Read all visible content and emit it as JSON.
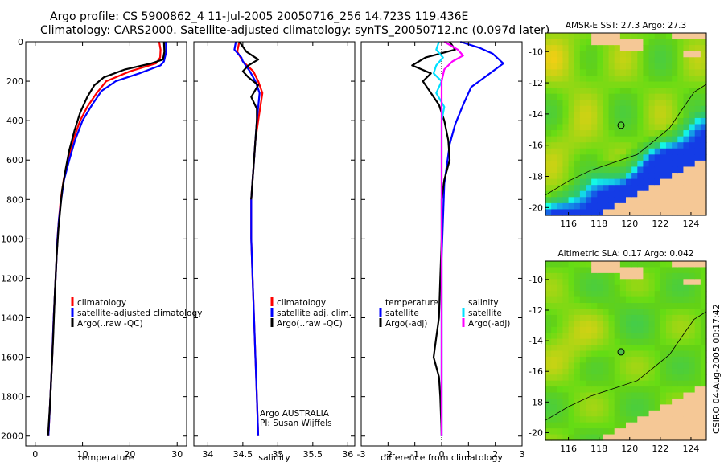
{
  "header": {
    "line1": "Argo profile: CS 5900862_4 11-Jul-2005 20050716_256 14.723S 119.436E",
    "line2": "Climatology: CARS2000. Satellite-adjusted climatology: synTS_20050712.nc (0.097d later)"
  },
  "side_stamp": "CSIRO 04-Aug-2005 00:17:42",
  "colors": {
    "climatology": "#ff0000",
    "satellite": "#0000ff",
    "argo": "#000000",
    "salinity_sat": "#00e0ff",
    "salinity_argo": "#ff00ff",
    "land": "#f5c896",
    "coast": "#000000"
  },
  "chart_data": [
    {
      "type": "line",
      "id": "temperature",
      "xlabel": "temperature",
      "ylabel": "",
      "xlim": [
        -2,
        32
      ],
      "ylim": [
        2050,
        0
      ],
      "xticks": [
        0,
        10,
        20,
        30
      ],
      "yticks": [
        0,
        200,
        400,
        600,
        800,
        1000,
        1200,
        1400,
        1600,
        1800,
        2000
      ],
      "legend": {
        "position": "bottom-right",
        "entries": [
          "climatology",
          "satellite-adjusted climatology",
          "Argo(..raw -QC)"
        ]
      },
      "series": [
        {
          "name": "climatology",
          "color": "#ff0000",
          "points": [
            [
              26.2,
              0
            ],
            [
              26.5,
              40
            ],
            [
              26.4,
              80
            ],
            [
              25.5,
              110
            ],
            [
              20,
              150
            ],
            [
              15,
              200
            ],
            [
              13,
              260
            ],
            [
              11,
              330
            ],
            [
              9.5,
              400
            ],
            [
              8,
              500
            ],
            [
              7,
              600
            ],
            [
              6,
              700
            ],
            [
              5.4,
              800
            ],
            [
              5,
              900
            ],
            [
              4.7,
              1000
            ],
            [
              4.3,
              1200
            ],
            [
              3.9,
              1400
            ],
            [
              3.6,
              1600
            ],
            [
              3.2,
              1800
            ],
            [
              2.8,
              2000
            ]
          ]
        },
        {
          "name": "satellite-adjusted climatology",
          "color": "#0000ff",
          "points": [
            [
              27.6,
              0
            ],
            [
              27.7,
              50
            ],
            [
              27.2,
              100
            ],
            [
              26.5,
              120
            ],
            [
              22,
              160
            ],
            [
              17,
              200
            ],
            [
              14,
              250
            ],
            [
              12,
              320
            ],
            [
              10,
              400
            ],
            [
              8.4,
              500
            ],
            [
              7.2,
              600
            ],
            [
              6.1,
              700
            ],
            [
              5.5,
              800
            ],
            [
              5,
              900
            ],
            [
              4.7,
              1000
            ],
            [
              4.3,
              1200
            ],
            [
              3.9,
              1400
            ],
            [
              3.6,
              1600
            ],
            [
              3.2,
              1800
            ],
            [
              2.8,
              2000
            ]
          ]
        },
        {
          "name": "Argo(..raw -QC)",
          "color": "#000000",
          "points": [
            [
              27.2,
              0
            ],
            [
              27.3,
              50
            ],
            [
              27,
              90
            ],
            [
              24.5,
              110
            ],
            [
              19,
              140
            ],
            [
              14.5,
              180
            ],
            [
              12.5,
              220
            ],
            [
              11,
              280
            ],
            [
              9.5,
              360
            ],
            [
              8.3,
              450
            ],
            [
              7.2,
              550
            ],
            [
              6.4,
              650
            ],
            [
              5.7,
              750
            ],
            [
              5.3,
              850
            ],
            [
              4.9,
              950
            ],
            [
              4.5,
              1100
            ],
            [
              4.1,
              1300
            ],
            [
              3.8,
              1500
            ],
            [
              3.4,
              1700
            ],
            [
              3.1,
              1850
            ],
            [
              2.7,
              2000
            ]
          ]
        }
      ]
    },
    {
      "type": "line",
      "id": "salinity",
      "xlabel": "salinity",
      "xlim": [
        33.8,
        36.1
      ],
      "ylim": [
        2050,
        0
      ],
      "xticks": [
        34,
        34.5,
        35,
        35.5,
        36
      ],
      "xticklabels": [
        "34",
        "34.5",
        "35",
        "35.5",
        "36"
      ],
      "legend": {
        "position": "bottom-right",
        "entries": [
          "climatology",
          "satellite adj. clim.",
          "Argo(..raw -QC)"
        ]
      },
      "annotations": [
        "Argo AUSTRALIA",
        "PI: Susan Wijffels"
      ],
      "series": [
        {
          "name": "climatology",
          "color": "#ff0000",
          "points": [
            [
              34.45,
              0
            ],
            [
              34.42,
              50
            ],
            [
              34.5,
              100
            ],
            [
              34.65,
              150
            ],
            [
              34.72,
              200
            ],
            [
              34.78,
              260
            ],
            [
              34.75,
              330
            ],
            [
              34.72,
              400
            ],
            [
              34.68,
              500
            ],
            [
              34.66,
              600
            ],
            [
              34.64,
              700
            ],
            [
              34.62,
              800
            ],
            [
              34.62,
              1000
            ],
            [
              34.64,
              1200
            ],
            [
              34.66,
              1400
            ],
            [
              34.68,
              1600
            ],
            [
              34.7,
              1800
            ],
            [
              34.72,
              2000
            ]
          ]
        },
        {
          "name": "satellite adj. clim.",
          "color": "#0000ff",
          "points": [
            [
              34.4,
              0
            ],
            [
              34.38,
              40
            ],
            [
              34.48,
              80
            ],
            [
              34.5,
              100
            ],
            [
              34.6,
              150
            ],
            [
              34.68,
              200
            ],
            [
              34.74,
              260
            ],
            [
              34.72,
              330
            ],
            [
              34.7,
              400
            ],
            [
              34.68,
              500
            ],
            [
              34.66,
              600
            ],
            [
              34.64,
              700
            ],
            [
              34.62,
              800
            ],
            [
              34.62,
              1000
            ],
            [
              34.64,
              1200
            ],
            [
              34.66,
              1400
            ],
            [
              34.68,
              1600
            ],
            [
              34.7,
              1800
            ],
            [
              34.72,
              2000
            ]
          ]
        },
        {
          "name": "Argo(..raw -QC)",
          "color": "#000000",
          "points": [
            [
              34.45,
              0
            ],
            [
              34.55,
              50
            ],
            [
              34.72,
              90
            ],
            [
              34.58,
              120
            ],
            [
              34.5,
              150
            ],
            [
              34.58,
              180
            ],
            [
              34.72,
              220
            ],
            [
              34.62,
              280
            ],
            [
              34.7,
              340
            ],
            [
              34.7,
              400
            ],
            [
              34.68,
              500
            ],
            [
              34.66,
              600
            ],
            [
              34.64,
              700
            ],
            [
              34.62,
              800
            ]
          ]
        }
      ]
    },
    {
      "type": "line",
      "id": "difference",
      "xlabel": "difference from climatology",
      "xlim": [
        -3,
        3
      ],
      "ylim": [
        2050,
        0
      ],
      "xticks": [
        -3,
        -2,
        -1,
        0,
        1,
        2,
        3
      ],
      "legend": {
        "position": "bottom",
        "entries": [
          "temperature",
          "satellite",
          "Argo(-adj)",
          "salinity",
          "satellite",
          "Argo(-adj)"
        ]
      },
      "series": [
        {
          "name": "temperature satellite",
          "color": "#0000ff",
          "points": [
            [
              0.7,
              0
            ],
            [
              1.4,
              30
            ],
            [
              1.9,
              60
            ],
            [
              2.3,
              110
            ],
            [
              1.6,
              180
            ],
            [
              1.1,
              230
            ],
            [
              0.8,
              320
            ],
            [
              0.5,
              420
            ],
            [
              0.3,
              520
            ],
            [
              0.2,
              620
            ],
            [
              0.1,
              720
            ],
            [
              0.05,
              900
            ],
            [
              0,
              1100
            ],
            [
              0,
              1500
            ],
            [
              0,
              1800
            ],
            [
              0,
              2000
            ]
          ]
        },
        {
          "name": "temperature Argo(-adj)",
          "color": "#000000",
          "points": [
            [
              0.3,
              0
            ],
            [
              0.5,
              40
            ],
            [
              -0.6,
              80
            ],
            [
              -1.1,
              120
            ],
            [
              -0.4,
              160
            ],
            [
              -0.7,
              200
            ],
            [
              -0.4,
              260
            ],
            [
              -0.1,
              320
            ],
            [
              0.1,
              400
            ],
            [
              0.25,
              500
            ],
            [
              0.3,
              600
            ],
            [
              0.1,
              700
            ],
            [
              0,
              800
            ],
            [
              0,
              1000
            ],
            [
              -0.05,
              1200
            ],
            [
              -0.1,
              1400
            ],
            [
              -0.2,
              1500
            ],
            [
              -0.3,
              1600
            ],
            [
              -0.1,
              1700
            ],
            [
              -0.05,
              1800
            ],
            [
              0,
              2000
            ]
          ]
        },
        {
          "name": "salinity satellite",
          "color": "#00e0ff",
          "points": [
            [
              -0.1,
              0
            ],
            [
              -0.2,
              40
            ],
            [
              0.05,
              80
            ],
            [
              -0.2,
              120
            ],
            [
              -0.3,
              160
            ],
            [
              0,
              200
            ],
            [
              -0.2,
              260
            ],
            [
              0.1,
              330
            ],
            [
              0,
              400
            ],
            [
              0,
              600
            ],
            [
              0,
              1000
            ],
            [
              0,
              1400
            ],
            [
              0,
              1800
            ],
            [
              0,
              2000
            ]
          ]
        },
        {
          "name": "salinity Argo(-adj)",
          "color": "#ff00ff",
          "points": [
            [
              0.1,
              0
            ],
            [
              0.6,
              40
            ],
            [
              0.8,
              70
            ],
            [
              0.4,
              100
            ],
            [
              0.1,
              140
            ],
            [
              0,
              200
            ],
            [
              0,
              400
            ],
            [
              0,
              800
            ],
            [
              0,
              1400
            ],
            [
              0,
              2000
            ]
          ]
        }
      ]
    },
    {
      "type": "heatmap",
      "id": "sst_map",
      "title": "AMSR-E SST: 27.3 Argo: 27.3",
      "xticks": [
        116,
        118,
        120,
        122,
        124
      ],
      "yticks": [
        -10,
        -12,
        -14,
        -16,
        -18,
        -20
      ],
      "xlim": [
        114.5,
        125
      ],
      "ylim": [
        -20.5,
        -8.8
      ],
      "marker": [
        119.436,
        -14.723
      ]
    },
    {
      "type": "heatmap",
      "id": "sla_map",
      "title": "Altimetric SLA: 0.17 Argo: 0.042",
      "xticks": [
        116,
        118,
        120,
        122,
        124
      ],
      "yticks": [
        -10,
        -12,
        -14,
        -16,
        -18,
        -20
      ],
      "xlim": [
        114.5,
        125
      ],
      "ylim": [
        -20.5,
        -8.8
      ],
      "marker": [
        119.436,
        -14.723
      ]
    }
  ]
}
